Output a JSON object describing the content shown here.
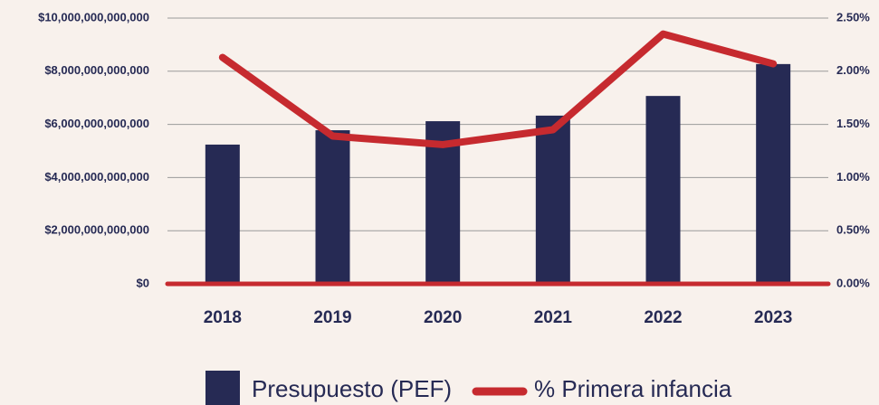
{
  "chart_data": {
    "type": "bar_line",
    "categories": [
      "2018",
      "2019",
      "2020",
      "2021",
      "2022",
      "2023"
    ],
    "series": [
      {
        "name": "Presupuesto (PEF)",
        "type": "bar",
        "color": "#262a54",
        "values": [
          5240000000000,
          5780000000000,
          6120000000000,
          6330000000000,
          7070000000000,
          8270000000000
        ]
      },
      {
        "name": "% Primera infancia",
        "type": "line",
        "axis": "y2",
        "color": "#c62a2f",
        "values": [
          2.13,
          1.39,
          1.31,
          1.45,
          2.35,
          2.07
        ]
      }
    ],
    "ylim": [
      0,
      10000000000000
    ],
    "yticks": [
      {
        "value": 0,
        "label": "$0"
      },
      {
        "value": 2000000000000,
        "label": "$2,000,000,000,000"
      },
      {
        "value": 4000000000000,
        "label": "$4,000,000,000,000"
      },
      {
        "value": 6000000000000,
        "label": "$6,000,000,000,000"
      },
      {
        "value": 8000000000000,
        "label": "$8,000,000,000,000"
      },
      {
        "value": 10000000000000,
        "label": "$10,000,000,000,000"
      }
    ],
    "y2lim": [
      0,
      2.5
    ],
    "y2ticks": [
      {
        "value": 0,
        "label": "0.00%"
      },
      {
        "value": 0.5,
        "label": "0.50%"
      },
      {
        "value": 1,
        "label": "1.00%"
      },
      {
        "value": 1.5,
        "label": "1.50%"
      },
      {
        "value": 2,
        "label": "2.00%"
      },
      {
        "value": 2.5,
        "label": "2.50%"
      }
    ],
    "grid": true,
    "legend": "bottom"
  }
}
